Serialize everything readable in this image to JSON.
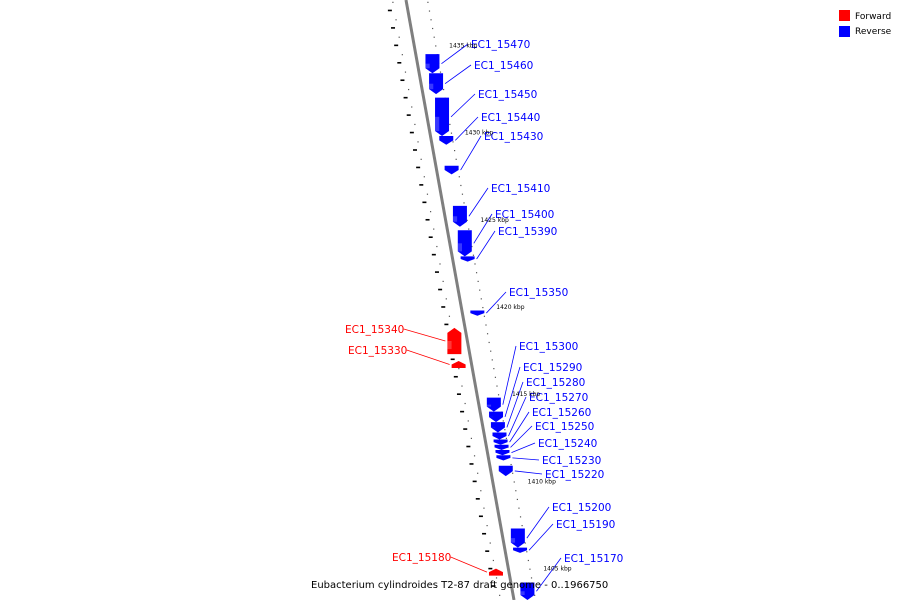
{
  "legend": {
    "items": [
      {
        "label": "Forward",
        "color": "#ff0000"
      },
      {
        "label": "Reverse",
        "color": "#0000ff"
      }
    ]
  },
  "caption": "Eubacterium cylindroides T2-87 draft genome - 0..1966750",
  "colors": {
    "forward": "#ff0000",
    "reverse": "#0000ff",
    "backbone": "#7f7f7f"
  },
  "axis": {
    "start_kbp": 1437.6,
    "end_kbp": 1403.2
  },
  "kbp_ticks": [
    "1435 kbp",
    "1430 kbp",
    "1425 kbp",
    "1420 kbp",
    "1415 kbp",
    "1410 kbp",
    "1405 kbp"
  ],
  "tick_values_kbp": [
    1435,
    1430,
    1425,
    1420,
    1415,
    1410,
    1405
  ],
  "genes": [
    {
      "name": "EC1_15470",
      "strand": "reverse",
      "start_kbp": 1434.5,
      "end_kbp": 1433.4
    },
    {
      "name": "EC1_15460",
      "strand": "reverse",
      "start_kbp": 1433.4,
      "end_kbp": 1432.2
    },
    {
      "name": "EC1_15450",
      "strand": "reverse",
      "start_kbp": 1432.0,
      "end_kbp": 1429.8
    },
    {
      "name": "EC1_15440",
      "strand": "reverse",
      "start_kbp": 1429.8,
      "end_kbp": 1429.3
    },
    {
      "name": "EC1_15430",
      "strand": "reverse",
      "start_kbp": 1428.1,
      "end_kbp": 1427.6
    },
    {
      "name": "EC1_15410",
      "strand": "reverse",
      "start_kbp": 1425.8,
      "end_kbp": 1424.6
    },
    {
      "name": "EC1_15400",
      "strand": "reverse",
      "start_kbp": 1424.4,
      "end_kbp": 1422.9
    },
    {
      "name": "EC1_15390",
      "strand": "reverse",
      "start_kbp": 1422.9,
      "end_kbp": 1422.6
    },
    {
      "name": "EC1_15350",
      "strand": "reverse",
      "start_kbp": 1419.8,
      "end_kbp": 1419.5
    },
    {
      "name": "EC1_15340",
      "strand": "forward",
      "start_kbp": 1418.8,
      "end_kbp": 1417.3
    },
    {
      "name": "EC1_15330",
      "strand": "forward",
      "start_kbp": 1416.9,
      "end_kbp": 1416.5
    },
    {
      "name": "EC1_15300",
      "strand": "reverse",
      "start_kbp": 1414.8,
      "end_kbp": 1414.0
    },
    {
      "name": "EC1_15290",
      "strand": "reverse",
      "start_kbp": 1414.0,
      "end_kbp": 1413.4
    },
    {
      "name": "EC1_15280",
      "strand": "reverse",
      "start_kbp": 1413.4,
      "end_kbp": 1412.8
    },
    {
      "name": "EC1_15270",
      "strand": "reverse",
      "start_kbp": 1412.8,
      "end_kbp": 1412.4
    },
    {
      "name": "EC1_15260",
      "strand": "reverse",
      "start_kbp": 1412.4,
      "end_kbp": 1412.1
    },
    {
      "name": "EC1_15250",
      "strand": "reverse",
      "start_kbp": 1412.1,
      "end_kbp": 1411.8
    },
    {
      "name": "EC1_15240",
      "strand": "reverse",
      "start_kbp": 1411.8,
      "end_kbp": 1411.5
    },
    {
      "name": "EC1_15230",
      "strand": "reverse",
      "start_kbp": 1411.5,
      "end_kbp": 1411.2
    },
    {
      "name": "EC1_15220",
      "strand": "reverse",
      "start_kbp": 1410.9,
      "end_kbp": 1410.3
    },
    {
      "name": "EC1_15200",
      "strand": "reverse",
      "start_kbp": 1407.3,
      "end_kbp": 1406.2
    },
    {
      "name": "EC1_15190",
      "strand": "reverse",
      "start_kbp": 1406.2,
      "end_kbp": 1405.9
    },
    {
      "name": "EC1_15180",
      "strand": "forward",
      "start_kbp": 1405.0,
      "end_kbp": 1404.6
    },
    {
      "name": "EC1_15170",
      "strand": "reverse",
      "start_kbp": 1404.2,
      "end_kbp": 1403.2
    }
  ]
}
